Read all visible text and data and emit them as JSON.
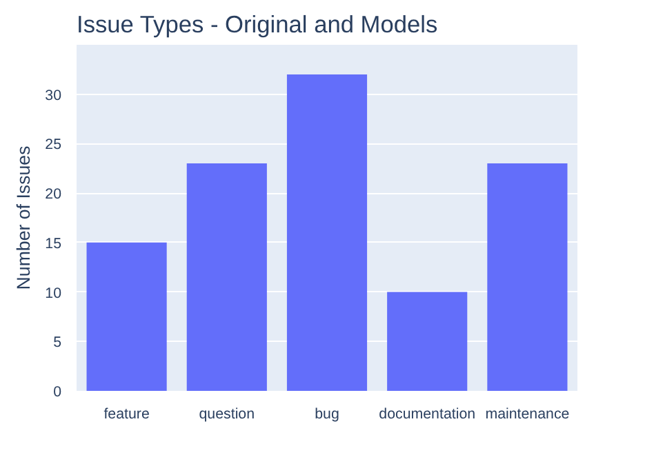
{
  "chart_data": {
    "type": "bar",
    "title": "Issue Types - Original and Models",
    "ylabel": "Number of Issues",
    "categories": [
      "feature",
      "question",
      "bug",
      "documentation",
      "maintenance"
    ],
    "values": [
      15,
      23,
      32,
      10,
      23
    ],
    "color": "#636efa",
    "ylim": [
      0,
      35
    ],
    "yticks": [
      0,
      5,
      10,
      15,
      20,
      25,
      30
    ],
    "grid": "y"
  }
}
